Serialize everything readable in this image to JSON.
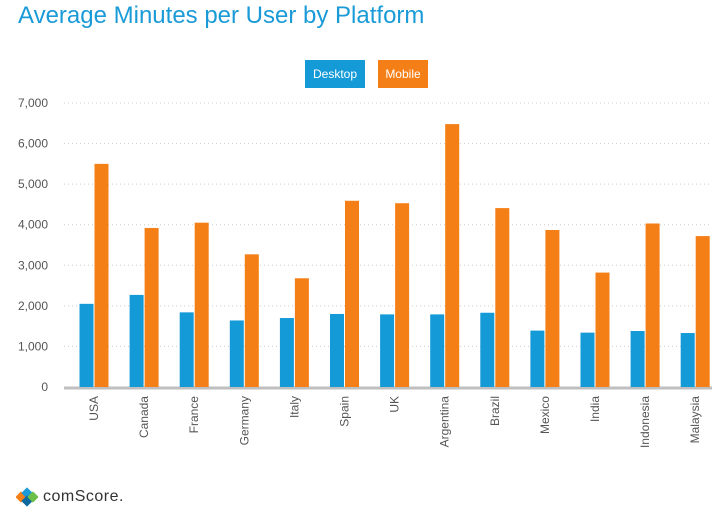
{
  "title": "Average Minutes per User by Platform",
  "legend": {
    "desktop": "Desktop",
    "mobile": "Mobile"
  },
  "logo_text": "comScore.",
  "colors": {
    "desktop": "#159ad8",
    "mobile": "#f57f17",
    "title": "#1a9bd7",
    "grid": "#cccccc",
    "axis": "#bfbfbf"
  },
  "chart_data": {
    "type": "bar",
    "title": "Average Minutes per User by Platform",
    "categories": [
      "USA",
      "Canada",
      "France",
      "Germany",
      "Italy",
      "Spain",
      "UK",
      "Argentina",
      "Brazil",
      "Mexico",
      "India",
      "Indonesia",
      "Malaysia"
    ],
    "series": [
      {
        "name": "Desktop",
        "values": [
          2050,
          2270,
          1840,
          1640,
          1700,
          1800,
          1790,
          1790,
          1830,
          1390,
          1340,
          1380,
          1330
        ]
      },
      {
        "name": "Mobile",
        "values": [
          5500,
          3920,
          4050,
          3270,
          2680,
          4590,
          4530,
          6480,
          4410,
          3870,
          2820,
          4030,
          3720
        ]
      }
    ],
    "yticks": [
      "7,000",
      "6,000",
      "5,000",
      "4,000",
      "3,000",
      "2,000",
      "1,000",
      "0"
    ],
    "ylim": [
      0,
      7000
    ],
    "grid": true,
    "legend_position": "top-center"
  }
}
